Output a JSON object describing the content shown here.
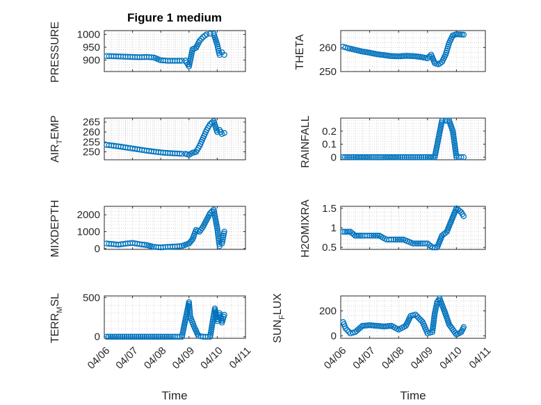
{
  "figure": {
    "title": "Figure 1 medium",
    "colors": {
      "marker": "#0072bd",
      "axis": "#262626",
      "grid": "#bdbdbd",
      "background": "#ffffff"
    }
  },
  "chart_data": [
    {
      "type": "scatter",
      "title": "Figure 1 medium",
      "ylabel": "PRESSURE",
      "ylim": [
        855,
        1015
      ],
      "yticks": [
        900,
        950,
        1000
      ],
      "xlim": [
        "04/06",
        "04/11"
      ],
      "xticks": [
        "04/06",
        "04/07",
        "04/08",
        "04/09",
        "04/10",
        "04/11"
      ],
      "grid": true,
      "x": [
        "04/06 02:00",
        "04/06 06:00",
        "04/06 12:00",
        "04/06 18:00",
        "04/07 00:00",
        "04/07 06:00",
        "04/07 12:00",
        "04/07 18:00",
        "04/08 00:00",
        "04/08 06:00",
        "04/08 12:00",
        "04/08 18:00",
        "04/08 21:00",
        "04/09 00:00",
        "04/09 03:00",
        "04/09 06:00",
        "04/09 09:00",
        "04/09 12:00",
        "04/09 15:00",
        "04/09 18:00",
        "04/09 21:00",
        "04/10 00:00",
        "04/10 02:00",
        "04/10 04:00",
        "04/10 06:00"
      ],
      "y": [
        915,
        915,
        914,
        913,
        912,
        911,
        912,
        910,
        899,
        897,
        897,
        897,
        898,
        875,
        942,
        948,
        975,
        990,
        1000,
        1003,
        1003,
        960,
        920,
        930,
        920
      ]
    },
    {
      "type": "scatter",
      "ylabel": "THETA",
      "ylim": [
        250,
        267
      ],
      "yticks": [
        250,
        260
      ],
      "xlim": [
        "04/06",
        "04/11"
      ],
      "xticks": [
        "04/06",
        "04/07",
        "04/08",
        "04/09",
        "04/10",
        "04/11"
      ],
      "grid": true,
      "x": [
        "04/06 02:00",
        "04/06 06:00",
        "04/06 12:00",
        "04/06 18:00",
        "04/07 00:00",
        "04/07 06:00",
        "04/07 12:00",
        "04/07 18:00",
        "04/08 00:00",
        "04/08 06:00",
        "04/08 12:00",
        "04/08 18:00",
        "04/08 21:00",
        "04/09 00:00",
        "04/09 03:00",
        "04/09 06:00",
        "04/09 09:00",
        "04/09 12:00",
        "04/09 15:00",
        "04/09 18:00",
        "04/09 21:00",
        "04/10 00:00",
        "04/10 06:00"
      ],
      "y": [
        260.3,
        259.7,
        259,
        258.3,
        257.8,
        257.2,
        256.8,
        256.4,
        256.3,
        256.5,
        256.4,
        256.1,
        255.8,
        255.5,
        257,
        253.5,
        253,
        254,
        257,
        262,
        265,
        265.5,
        265.3
      ]
    },
    {
      "type": "scatter",
      "ylabel": "AIR_TEMP",
      "ylim": [
        246,
        267
      ],
      "yticks": [
        250,
        255,
        260,
        265
      ],
      "xlim": [
        "04/06",
        "04/11"
      ],
      "xticks": [
        "04/06",
        "04/07",
        "04/08",
        "04/09",
        "04/10",
        "04/11"
      ],
      "grid": true,
      "x": [
        "04/06 02:00",
        "04/06 06:00",
        "04/06 12:00",
        "04/06 18:00",
        "04/07 00:00",
        "04/07 06:00",
        "04/07 12:00",
        "04/07 18:00",
        "04/08 00:00",
        "04/08 06:00",
        "04/08 12:00",
        "04/08 18:00",
        "04/08 21:00",
        "04/09 00:00",
        "04/09 03:00",
        "04/09 06:00",
        "04/09 09:00",
        "04/09 12:00",
        "04/09 15:00",
        "04/09 18:00",
        "04/09 21:00",
        "04/10 00:00",
        "04/10 02:00",
        "04/10 04:00",
        "04/10 06:00"
      ],
      "y": [
        253.5,
        253.2,
        252.8,
        252.2,
        251.7,
        251.1,
        250.6,
        250.1,
        249.7,
        249.4,
        249.2,
        249.0,
        249.0,
        248.5,
        249.5,
        250,
        253,
        257,
        261,
        264,
        265.5,
        260,
        261,
        259,
        259.5
      ]
    },
    {
      "type": "scatter",
      "ylabel": "RAINFALL",
      "ylim": [
        -0.02,
        0.3
      ],
      "yticks": [
        0,
        0.1,
        0.2
      ],
      "xlim": [
        "04/06",
        "04/11"
      ],
      "xticks": [
        "04/06",
        "04/07",
        "04/08",
        "04/09",
        "04/10",
        "04/11"
      ],
      "grid": true,
      "x": [
        "04/06 02:00",
        "04/06 12:00",
        "04/07 00:00",
        "04/07 12:00",
        "04/08 00:00",
        "04/08 12:00",
        "04/09 00:00",
        "04/09 06:00",
        "04/09 12:00",
        "04/09 15:00",
        "04/09 18:00",
        "04/09 21:00",
        "04/10 00:00",
        "04/10 06:00"
      ],
      "y": [
        0,
        0,
        0,
        0,
        0,
        0,
        0,
        0,
        0.28,
        0.28,
        0.28,
        0.2,
        0,
        0
      ]
    },
    {
      "type": "scatter",
      "ylabel": "MIXDEPTH",
      "ylim": [
        -50,
        2500
      ],
      "yticks": [
        0,
        1000,
        2000
      ],
      "xlim": [
        "04/06",
        "04/11"
      ],
      "xticks": [
        "04/06",
        "04/07",
        "04/08",
        "04/09",
        "04/10",
        "04/11"
      ],
      "grid": true,
      "x": [
        "04/06 02:00",
        "04/06 06:00",
        "04/06 12:00",
        "04/06 18:00",
        "04/07 00:00",
        "04/07 06:00",
        "04/07 12:00",
        "04/07 18:00",
        "04/08 00:00",
        "04/08 06:00",
        "04/08 12:00",
        "04/08 18:00",
        "04/09 00:00",
        "04/09 03:00",
        "04/09 06:00",
        "04/09 09:00",
        "04/09 12:00",
        "04/09 15:00",
        "04/09 18:00",
        "04/09 21:00",
        "04/10 00:00",
        "04/10 02:00",
        "04/10 04:00",
        "04/10 06:00"
      ],
      "y": [
        300,
        270,
        230,
        290,
        330,
        260,
        200,
        100,
        70,
        100,
        120,
        150,
        300,
        550,
        1100,
        1000,
        1300,
        1700,
        2100,
        2300,
        1200,
        150,
        300,
        1000
      ]
    },
    {
      "type": "scatter",
      "ylabel": "H2OMIXRA",
      "ylim": [
        0.45,
        1.55
      ],
      "yticks": [
        0.5,
        1,
        1.5
      ],
      "xlim": [
        "04/06",
        "04/11"
      ],
      "xticks": [
        "04/06",
        "04/07",
        "04/08",
        "04/09",
        "04/10",
        "04/11"
      ],
      "grid": true,
      "x": [
        "04/06 02:00",
        "04/06 08:00",
        "04/06 12:00",
        "04/06 18:00",
        "04/07 00:00",
        "04/07 08:00",
        "04/07 14:00",
        "04/07 20:00",
        "04/08 04:00",
        "04/08 12:00",
        "04/08 20:00",
        "04/09 00:00",
        "04/09 04:00",
        "04/09 08:00",
        "04/09 12:00",
        "04/09 16:00",
        "04/09 20:00",
        "04/10 00:00",
        "04/10 04:00",
        "04/10 06:00"
      ],
      "y": [
        0.9,
        0.9,
        0.8,
        0.8,
        0.8,
        0.8,
        0.7,
        0.7,
        0.7,
        0.6,
        0.6,
        0.6,
        0.5,
        0.5,
        0.8,
        0.9,
        1.2,
        1.5,
        1.4,
        1.3
      ]
    },
    {
      "type": "scatter",
      "ylabel": "TERR_MSL",
      "ylim": [
        -20,
        520
      ],
      "yticks": [
        0,
        500
      ],
      "xlim": [
        "04/06",
        "04/11"
      ],
      "xticks": [
        "04/06",
        "04/07",
        "04/08",
        "04/09",
        "04/10",
        "04/11"
      ],
      "grid": true,
      "x": [
        "04/06 02:00",
        "04/06 12:00",
        "04/07 00:00",
        "04/07 12:00",
        "04/08 00:00",
        "04/08 12:00",
        "04/08 18:00",
        "04/09 00:00",
        "04/09 01:00",
        "04/09 04:00",
        "04/09 08:00",
        "04/09 12:00",
        "04/09 18:00",
        "04/09 22:00",
        "04/10 00:00",
        "04/10 02:00",
        "04/10 04:00",
        "04/10 06:00"
      ],
      "y": [
        0,
        0,
        0,
        0,
        0,
        0,
        0,
        440,
        260,
        140,
        10,
        0,
        0,
        360,
        200,
        300,
        180,
        280
      ]
    },
    {
      "type": "scatter",
      "ylabel": "SUN_FLUX",
      "ylim": [
        -20,
        320
      ],
      "yticks": [
        0,
        200
      ],
      "xlim": [
        "04/06",
        "04/11"
      ],
      "xticks": [
        "04/06",
        "04/07",
        "04/08",
        "04/09",
        "04/10",
        "04/11"
      ],
      "grid": true,
      "x": [
        "04/06 02:00",
        "04/06 04:00",
        "04/06 08:00",
        "04/06 12:00",
        "04/06 18:00",
        "04/07 00:00",
        "04/07 06:00",
        "04/07 12:00",
        "04/07 18:00",
        "04/08 00:00",
        "04/08 06:00",
        "04/08 10:00",
        "04/08 14:00",
        "04/08 20:00",
        "04/09 00:00",
        "04/09 04:00",
        "04/09 06:00",
        "04/09 08:00",
        "04/09 10:00",
        "04/09 14:00",
        "04/09 18:00",
        "04/10 00:00",
        "04/10 04:00",
        "04/10 06:00"
      ],
      "y": [
        110,
        60,
        20,
        30,
        80,
        85,
        80,
        75,
        80,
        50,
        80,
        160,
        170,
        110,
        20,
        30,
        180,
        270,
        300,
        200,
        90,
        10,
        30,
        70
      ]
    }
  ],
  "labels": {
    "pressure": "PRESSURE",
    "theta": "THETA",
    "air_main": "AIR",
    "air_sub": "T",
    "air_rest": "EMP",
    "rainfall": "RAINFALL",
    "mixdepth": "MIXDEPTH",
    "h2o": "H2OMIXRA",
    "terr_main": "TERR",
    "terr_sub": "M",
    "terr_rest": "SL",
    "sun_main": "SUN",
    "sun_sub": "F",
    "sun_rest": "LUX",
    "time_left": "Time",
    "time_right": "Time"
  }
}
